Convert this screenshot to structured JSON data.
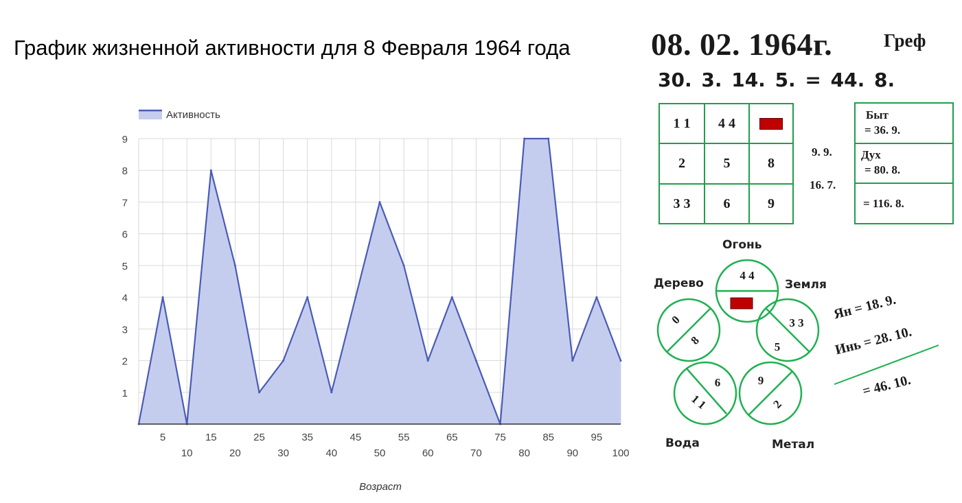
{
  "header": {
    "title": "График жизненной активности для 8 Февраля 1964 года",
    "date": "08. 02. 1964г.",
    "surname": "Греф",
    "sum_line": "30. 3.   14. 5.   =   44. 8."
  },
  "chart_data": {
    "type": "area",
    "legend": [
      "Активность"
    ],
    "legend_position": "top-left",
    "xlabel": "Возраст",
    "ylabel": "",
    "ylim": [
      0,
      9
    ],
    "xlim": [
      0,
      100
    ],
    "grid": true,
    "x_ticks_upper": [
      "5",
      "15",
      "25",
      "35",
      "45",
      "55",
      "65",
      "75",
      "85",
      "95"
    ],
    "x_ticks_lower": [
      "10",
      "20",
      "30",
      "40",
      "50",
      "60",
      "70",
      "80",
      "90",
      "100"
    ],
    "y_ticks": [
      "1",
      "2",
      "3",
      "4",
      "5",
      "6",
      "7",
      "8",
      "9"
    ],
    "x": [
      0,
      5,
      10,
      15,
      20,
      25,
      30,
      35,
      40,
      45,
      50,
      55,
      60,
      65,
      70,
      75,
      80,
      85,
      90,
      95,
      100
    ],
    "series": [
      {
        "name": "Активность",
        "values": [
          0,
          4,
          0,
          8,
          5,
          1,
          2,
          4,
          1,
          4,
          7,
          5,
          2,
          4,
          2,
          0,
          9,
          9,
          2,
          4,
          2
        ]
      }
    ],
    "colors": {
      "fill": "#c5cdef",
      "line": "#4a5bb5",
      "grid": "#d9d9d9"
    }
  },
  "square": {
    "cells": [
      [
        "1 1",
        "4 4",
        ""
      ],
      [
        "2",
        "5",
        "8"
      ],
      [
        "3 3",
        "6",
        "9"
      ]
    ],
    "side_values": [
      "9. 9.",
      "16. 7."
    ]
  },
  "summary_box": {
    "byt_label": "Быт",
    "byt_value": "= 36. 9.",
    "dukh_label": "Дух",
    "dukh_value": "= 80. 8.",
    "total": "= 116. 8."
  },
  "elements": {
    "fire": {
      "label": "Огонь",
      "top": "4 4"
    },
    "earth": {
      "label": "Земля",
      "top": "3 3",
      "bottom": "5"
    },
    "wood": {
      "label": "Дерево",
      "top": "0",
      "bottom": "8"
    },
    "water": {
      "label": "Вода",
      "top": "6",
      "bottom": "1 1"
    },
    "metal": {
      "label": "Метал",
      "top": "9",
      "bottom": "2"
    }
  },
  "yin_yang": {
    "yan": "Ян =  18. 9.",
    "yin": "Инь =  28. 10.",
    "total": "=  46. 10."
  }
}
